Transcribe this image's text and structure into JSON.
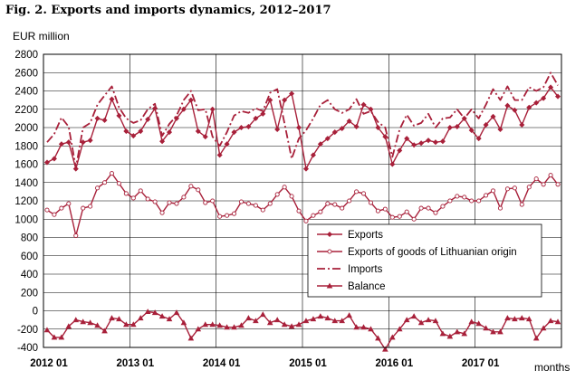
{
  "title": "Fig. 2. Exports and imports dynamics, 2012–2017",
  "chart_data": {
    "type": "line",
    "title": "Fig. 2. Exports and imports dynamics, 2012–2017",
    "ylabel": "EUR million",
    "xlabel": "months",
    "ylim": [
      -400,
      2800
    ],
    "yticks": [
      -400,
      -200,
      0,
      200,
      400,
      600,
      800,
      1000,
      1200,
      1400,
      1600,
      1800,
      2000,
      2200,
      2400,
      2600,
      2800
    ],
    "x_tick_labels": [
      "2012 01",
      "2013 01",
      "2014 01",
      "2015 01",
      "2016 01",
      "2017 01"
    ],
    "x_start": "2012-01",
    "months": 72,
    "grid": true,
    "legend_position": "lower-right inside plot",
    "colors": {
      "line": "#a8203a",
      "grid": "#000000"
    },
    "series": [
      {
        "name": "Exports",
        "marker": "diamond",
        "style": "solid",
        "values": [
          1620,
          1660,
          1820,
          1840,
          1550,
          1840,
          1860,
          2100,
          2080,
          2310,
          2130,
          1960,
          1910,
          1960,
          2090,
          2210,
          1850,
          1950,
          2100,
          2200,
          2300,
          1960,
          1900,
          2200,
          1700,
          1820,
          1950,
          2000,
          2010,
          2100,
          2150,
          2300,
          1980,
          2300,
          2370,
          2000,
          1550,
          1700,
          1820,
          1880,
          1950,
          1990,
          2070,
          2010,
          2250,
          2200,
          2000,
          1900,
          1600,
          1750,
          1880,
          1810,
          1830,
          1860,
          1840,
          1850,
          2000,
          2010,
          2100,
          1970,
          1880,
          2030,
          2120,
          1980,
          2240,
          2190,
          2030,
          2220,
          2270,
          2320,
          2440,
          2340
        ]
      },
      {
        "name": "Exports of goods of Lithuanian origin",
        "marker": "circle",
        "style": "solid",
        "values": [
          1100,
          1050,
          1120,
          1170,
          820,
          1120,
          1140,
          1340,
          1400,
          1500,
          1390,
          1280,
          1230,
          1310,
          1220,
          1190,
          1070,
          1180,
          1170,
          1240,
          1360,
          1320,
          1180,
          1200,
          1030,
          1040,
          1060,
          1190,
          1170,
          1150,
          1100,
          1170,
          1270,
          1350,
          1250,
          1090,
          980,
          1040,
          1080,
          1170,
          1160,
          1120,
          1200,
          1300,
          1280,
          1180,
          1090,
          1110,
          1020,
          1030,
          1080,
          1000,
          1120,
          1120,
          1070,
          1140,
          1200,
          1250,
          1240,
          1200,
          1200,
          1260,
          1310,
          1120,
          1330,
          1340,
          1160,
          1350,
          1440,
          1380,
          1480,
          1380
        ]
      },
      {
        "name": "Imports",
        "marker": "none",
        "style": "dashdot",
        "values": [
          1840,
          1930,
          2110,
          2010,
          1560,
          2000,
          2050,
          2250,
          2350,
          2450,
          2220,
          2100,
          2050,
          2080,
          2200,
          2260,
          1910,
          2040,
          2130,
          2300,
          2400,
          2190,
          2200,
          1900,
          1800,
          1950,
          2130,
          2180,
          2160,
          2210,
          2180,
          2380,
          2420,
          2050,
          1660,
          1880,
          1970,
          2100,
          2250,
          2300,
          2200,
          2160,
          2200,
          2310,
          2150,
          2180,
          2060,
          2000,
          1680,
          1980,
          2140,
          2020,
          2050,
          2150,
          2000,
          2100,
          2110,
          2200,
          2100,
          2200,
          2100,
          2250,
          2420,
          2300,
          2450,
          2300,
          2300,
          2440,
          2400,
          2440,
          2600,
          2460
        ]
      },
      {
        "name": "Balance",
        "marker": "triangle",
        "style": "solid",
        "values": [
          -210,
          -290,
          -290,
          -170,
          -100,
          -120,
          -130,
          -160,
          -220,
          -80,
          -90,
          -150,
          -150,
          -80,
          -10,
          -20,
          -60,
          -90,
          -20,
          -130,
          -300,
          -200,
          -150,
          -150,
          -160,
          -180,
          -180,
          -160,
          -80,
          -110,
          -40,
          -130,
          -100,
          -150,
          -170,
          -150,
          -110,
          -90,
          -60,
          -80,
          -110,
          -110,
          -50,
          -180,
          -180,
          -200,
          -300,
          -420,
          -290,
          -200,
          -100,
          -60,
          -130,
          -100,
          -110,
          -250,
          -280,
          -230,
          -250,
          -120,
          -140,
          -190,
          -230,
          -230,
          -80,
          -90,
          -80,
          -90,
          -300,
          -190,
          -110,
          -120
        ]
      }
    ]
  }
}
